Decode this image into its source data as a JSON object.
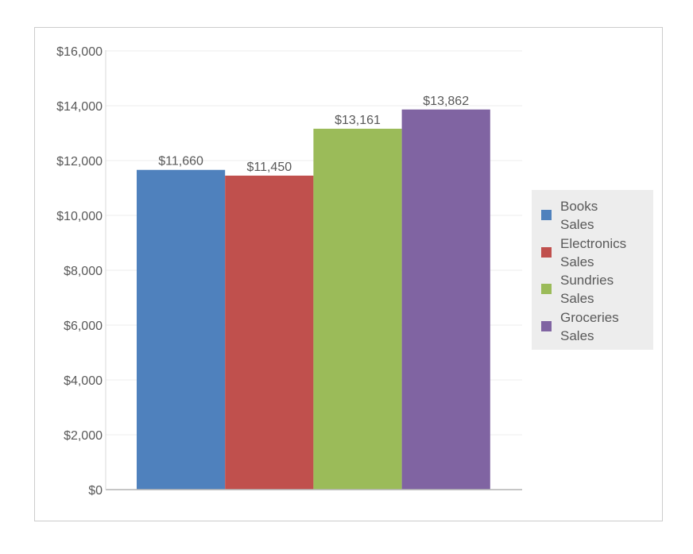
{
  "chart_data": {
    "type": "bar",
    "title": "",
    "xlabel": "",
    "ylabel": "",
    "ylim": [
      0,
      16000
    ],
    "yticks": [
      0,
      2000,
      4000,
      6000,
      8000,
      10000,
      12000,
      14000,
      16000
    ],
    "ytick_labels": [
      "$0",
      "$2,000",
      "$4,000",
      "$6,000",
      "$8,000",
      "$10,000",
      "$12,000",
      "$14,000",
      "$16,000"
    ],
    "grid": true,
    "legend_position": "right",
    "series": [
      {
        "name": "Books\nSales",
        "value": 11660,
        "label": "$11,660",
        "color": "#4f81bd"
      },
      {
        "name": "Electronics\nSales",
        "value": 11450,
        "label": "$11,450",
        "color": "#c0504d"
      },
      {
        "name": "Sundries\nSales",
        "value": 13161,
        "label": "$13,161",
        "color": "#9bbb59"
      },
      {
        "name": "Groceries\nSales",
        "value": 13862,
        "label": "$13,862",
        "color": "#8064a2"
      }
    ]
  }
}
